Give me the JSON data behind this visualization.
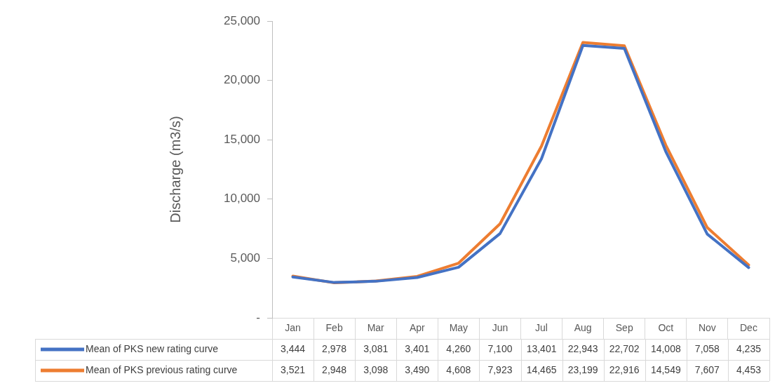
{
  "chart_data": {
    "type": "line",
    "ylabel": "Discharge (m3/s)",
    "categories": [
      "Jan",
      "Feb",
      "Mar",
      "Apr",
      "May",
      "Jun",
      "Jul",
      "Aug",
      "Sep",
      "Oct",
      "Nov",
      "Dec"
    ],
    "series": [
      {
        "name": "Mean of PKS new rating curve",
        "color": "#4472c4",
        "values": [
          3444,
          2978,
          3081,
          3401,
          4260,
          7100,
          13401,
          22943,
          22702,
          14008,
          7058,
          4235
        ],
        "value_labels": [
          "3,444",
          "2,978",
          "3,081",
          "3,401",
          "4,260",
          "7,100",
          "13,401",
          "22,943",
          "22,702",
          "14,008",
          "7,058",
          "4,235"
        ]
      },
      {
        "name": "Mean of PKS previous rating curve",
        "color": "#ed7d31",
        "values": [
          3521,
          2948,
          3098,
          3490,
          4608,
          7923,
          14465,
          23199,
          22916,
          14549,
          7607,
          4453
        ],
        "value_labels": [
          "3,521",
          "2,948",
          "3,098",
          "3,490",
          "4,608",
          "7,923",
          "14,465",
          "23,199",
          "22,916",
          "14,549",
          "7,607",
          "4,453"
        ]
      }
    ],
    "ylim": [
      0,
      25000
    ],
    "yticks": [
      {
        "value": 0,
        "label": "-"
      },
      {
        "value": 5000,
        "label": "5,000"
      },
      {
        "value": 10000,
        "label": "10,000"
      },
      {
        "value": 15000,
        "label": "15,000"
      },
      {
        "value": 20000,
        "label": "20,000"
      },
      {
        "value": 25000,
        "label": "25,000"
      }
    ],
    "legend": "bottom"
  }
}
